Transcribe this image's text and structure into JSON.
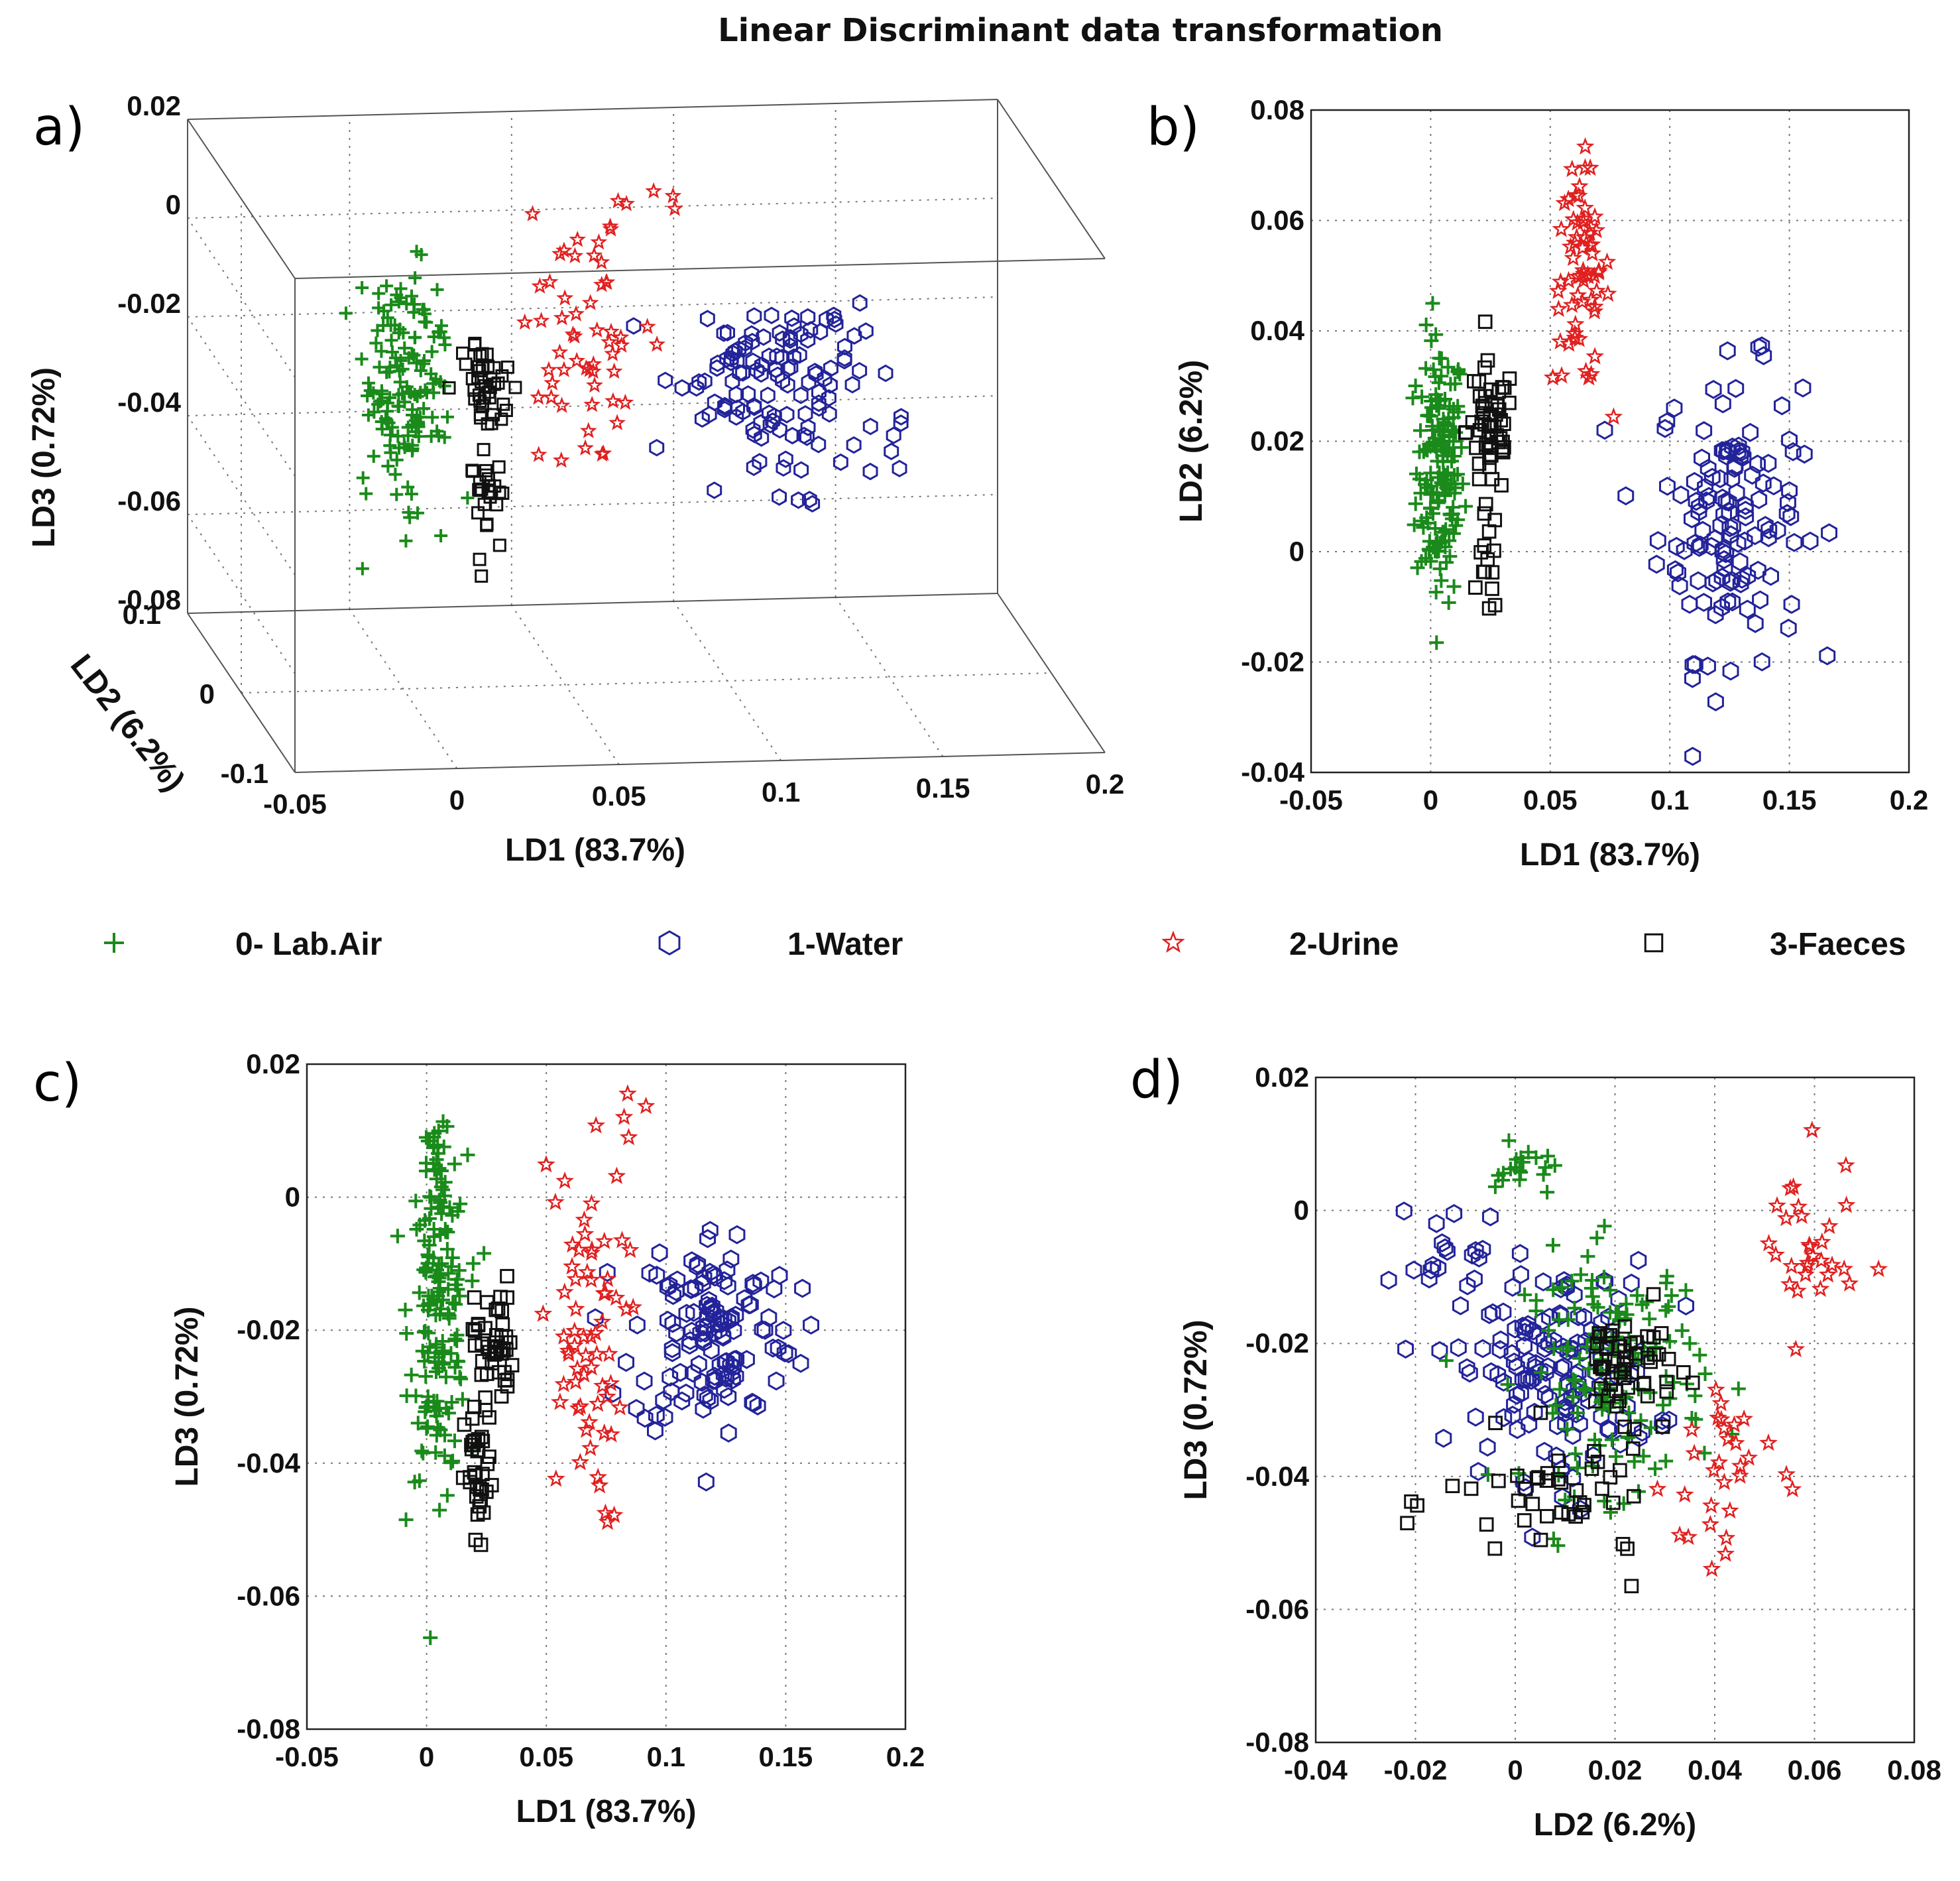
{
  "figure_title": "Linear Discriminant data transformation",
  "legend": [
    {
      "key": "air",
      "label": "0- Lab.Air",
      "color": "#1a8a1a",
      "marker": "plus"
    },
    {
      "key": "water",
      "label": "1-Water",
      "color": "#23239a",
      "marker": "hexagon"
    },
    {
      "key": "urine",
      "label": "2-Urine",
      "color": "#e02020",
      "marker": "star"
    },
    {
      "key": "faeces",
      "label": "3-Faeces",
      "color": "#111111",
      "marker": "square"
    }
  ],
  "chart_data": [
    {
      "panel": "a)",
      "type": "scatter",
      "projection": "3d",
      "xlabel": "LD1 (83.7%)",
      "ylabel": "LD2 (6.2%)",
      "zlabel": "LD3 (0.72%)",
      "xlim": [
        -0.05,
        0.2
      ],
      "ylim": [
        -0.1,
        0.1
      ],
      "zlim": [
        -0.08,
        0.02
      ],
      "xticks": [
        "-0.05",
        "0",
        "0.05",
        "0.1",
        "0.15",
        "0.2"
      ],
      "yticks": [
        "-0.1",
        "0",
        "0.1"
      ],
      "zticks": [
        "-0.08",
        "-0.06",
        "-0.04",
        "-0.02",
        "0",
        "0.02"
      ],
      "grid": true,
      "series": [
        {
          "key": "air",
          "clusters": [
            {
              "cx": 0.003,
              "cy": 0.012,
              "cz": -0.022,
              "sx": 0.006,
              "sy": 0.012,
              "sz": 0.011,
              "n": 150
            }
          ]
        },
        {
          "key": "water",
          "clusters": [
            {
              "cx": 0.118,
              "cy": 0.01,
              "cz": -0.021,
              "sx": 0.016,
              "sy": 0.02,
              "sz": 0.009,
              "n": 130
            }
          ]
        },
        {
          "key": "urine",
          "clusters": [
            {
              "cx": 0.066,
              "cy": 0.05,
              "cz": -0.018,
              "sx": 0.01,
              "sy": 0.01,
              "sz": 0.013,
              "n": 55
            },
            {
              "cx": 0.08,
              "cy": 0.06,
              "cz": 0.01,
              "sx": 0.006,
              "sy": 0.004,
              "sz": 0.003,
              "n": 5
            }
          ]
        },
        {
          "key": "faeces",
          "clusters": [
            {
              "cx": 0.028,
              "cy": 0.018,
              "cz": -0.022,
              "sx": 0.004,
              "sy": 0.005,
              "sz": 0.005,
              "n": 40
            },
            {
              "cx": 0.026,
              "cy": 0.0,
              "cz": -0.042,
              "sx": 0.003,
              "sy": 0.005,
              "sz": 0.006,
              "n": 25
            }
          ]
        }
      ]
    },
    {
      "panel": "b)",
      "type": "scatter",
      "xlabel": "LD1 (83.7%)",
      "ylabel": "LD2 (6.2%)",
      "xlim": [
        -0.05,
        0.2
      ],
      "ylim": [
        -0.04,
        0.08
      ],
      "xticks": [
        "-0.05",
        "0",
        "0.05",
        "0.1",
        "0.15",
        "0.2"
      ],
      "yticks": [
        "-0.04",
        "-0.02",
        "0",
        "0.02",
        "0.04",
        "0.06",
        "0.08"
      ],
      "grid": true,
      "series": [
        {
          "key": "air",
          "clusters": [
            {
              "cx": 0.004,
              "cy": 0.015,
              "sx": 0.005,
              "sy": 0.012,
              "n": 160
            }
          ]
        },
        {
          "key": "water",
          "clusters": [
            {
              "cx": 0.125,
              "cy": 0.007,
              "sx": 0.015,
              "sy": 0.013,
              "n": 130
            }
          ]
        },
        {
          "key": "urine",
          "clusters": [
            {
              "cx": 0.063,
              "cy": 0.05,
              "sx": 0.006,
              "sy": 0.01,
              "n": 65
            }
          ]
        },
        {
          "key": "faeces",
          "clusters": [
            {
              "cx": 0.025,
              "cy": 0.022,
              "sx": 0.005,
              "sy": 0.006,
              "n": 55
            },
            {
              "cx": 0.024,
              "cy": -0.002,
              "sx": 0.002,
              "sy": 0.005,
              "n": 15
            }
          ]
        }
      ]
    },
    {
      "panel": "c)",
      "type": "scatter",
      "xlabel": "LD1 (83.7%)",
      "ylabel": "LD3 (0.72%)",
      "xlim": [
        -0.05,
        0.2
      ],
      "ylim": [
        -0.08,
        0.02
      ],
      "xticks": [
        "-0.05",
        "0",
        "0.05",
        "0.1",
        "0.15",
        "0.2"
      ],
      "yticks": [
        "-0.08",
        "-0.06",
        "-0.04",
        "-0.02",
        "0",
        "0.02"
      ],
      "grid": true,
      "series": [
        {
          "key": "air",
          "clusters": [
            {
              "cx": 0.005,
              "cy": -0.018,
              "sx": 0.006,
              "sy": 0.012,
              "n": 160
            },
            {
              "cx": 0.004,
              "cy": 0.005,
              "sx": 0.002,
              "sy": 0.003,
              "n": 20
            }
          ]
        },
        {
          "key": "water",
          "clusters": [
            {
              "cx": 0.12,
              "cy": -0.02,
              "sx": 0.017,
              "sy": 0.008,
              "n": 130
            }
          ]
        },
        {
          "key": "urine",
          "clusters": [
            {
              "cx": 0.065,
              "cy": -0.022,
              "sx": 0.009,
              "sy": 0.014,
              "n": 65
            },
            {
              "cx": 0.085,
              "cy": 0.012,
              "sx": 0.005,
              "sy": 0.002,
              "n": 4
            }
          ]
        },
        {
          "key": "faeces",
          "clusters": [
            {
              "cx": 0.028,
              "cy": -0.022,
              "sx": 0.004,
              "sy": 0.005,
              "n": 45
            },
            {
              "cx": 0.022,
              "cy": -0.043,
              "sx": 0.003,
              "sy": 0.006,
              "n": 35
            }
          ]
        }
      ]
    },
    {
      "panel": "d)",
      "type": "scatter",
      "xlabel": "LD2 (6.2%)",
      "ylabel": "LD3 (0.72%)",
      "xlim": [
        -0.04,
        0.08
      ],
      "ylim": [
        -0.08,
        0.02
      ],
      "xticks": [
        "-0.04",
        "-0.02",
        "0",
        "0.02",
        "0.04",
        "0.06",
        "0.08"
      ],
      "yticks": [
        "-0.08",
        "-0.06",
        "-0.04",
        "-0.02",
        "0",
        "0.02"
      ],
      "grid": true,
      "series": [
        {
          "key": "water",
          "clusters": [
            {
              "cx": 0.008,
              "cy": -0.024,
              "sx": 0.01,
              "sy": 0.008,
              "n": 140
            },
            {
              "cx": -0.012,
              "cy": -0.008,
              "sx": 0.006,
              "sy": 0.005,
              "n": 20
            }
          ]
        },
        {
          "key": "air",
          "clusters": [
            {
              "cx": 0.02,
              "cy": -0.024,
              "sx": 0.009,
              "sy": 0.009,
              "n": 140
            },
            {
              "cx": 0.002,
              "cy": 0.006,
              "sx": 0.003,
              "sy": 0.002,
              "n": 20
            }
          ]
        },
        {
          "key": "faeces",
          "clusters": [
            {
              "cx": 0.022,
              "cy": -0.023,
              "sx": 0.005,
              "sy": 0.004,
              "n": 55
            },
            {
              "cx": 0.01,
              "cy": -0.044,
              "sx": 0.012,
              "sy": 0.005,
              "n": 45
            }
          ]
        },
        {
          "key": "urine",
          "clusters": [
            {
              "cx": 0.058,
              "cy": -0.006,
              "sx": 0.005,
              "sy": 0.007,
              "n": 30
            },
            {
              "cx": 0.042,
              "cy": -0.04,
              "sx": 0.006,
              "sy": 0.01,
              "n": 30
            }
          ]
        }
      ]
    }
  ]
}
